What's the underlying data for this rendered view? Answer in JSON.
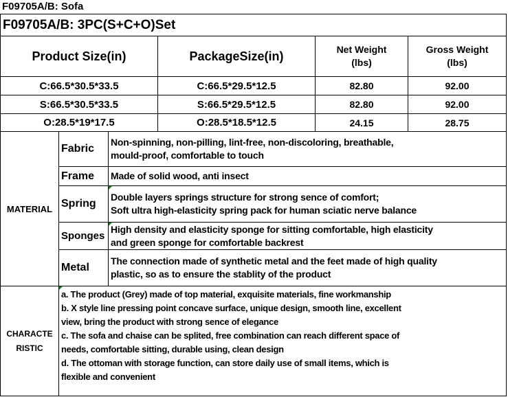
{
  "sheet_title": "F09705A/B: Sofa",
  "set_title": "F09705A/B: 3PC(S+C+O)Set",
  "headers": {
    "product_size": "Product Size(in)",
    "package_size": "PackageSize(in)",
    "net_weight": [
      "Net Weight",
      "(lbs)"
    ],
    "gross_weight": [
      "Gross Weight",
      "(lbs)"
    ]
  },
  "rows": [
    {
      "product": "C:66.5*30.5*33.5",
      "package": "C:66.5*29.5*12.5",
      "net": "82.80",
      "gross": "92.00"
    },
    {
      "product": "S:66.5*30.5*33.5",
      "package": "S:66.5*29.5*12.5",
      "net": "82.80",
      "gross": "92.00"
    },
    {
      "product": "O:28.5*19*17.5",
      "package": "O:28.5*18.5*12.5",
      "net": "24.15",
      "gross": "28.75"
    }
  ],
  "material": {
    "label": "MATERIAL",
    "items": [
      {
        "name": "Fabric",
        "lines": [
          "Non-spinning, non-pilling, lint-free, non-discoloring, breathable,",
          "mould-proof, comfortable to touch"
        ]
      },
      {
        "name": "Frame",
        "lines": [
          "Made of solid wood, anti insect"
        ]
      },
      {
        "name": "Spring",
        "lines": [
          "Double layers springs structure for strong sence of comfort;",
          "Soft ultra high-elasticity spring pack for human sciatic nerve balance"
        ]
      },
      {
        "name": "Sponges",
        "lines": [
          "High density and elasticity sponge for sitting comfortable, high elasticity",
          "and green sponge for comfortable backrest"
        ]
      },
      {
        "name": "Metal",
        "lines": [
          "The connection made of synthetic metal and the feet made of high quality",
          "plastic, so as to ensure the stablity of  the product"
        ]
      }
    ]
  },
  "characteristic": {
    "label": [
      "CHARACTE",
      "RISTIC"
    ],
    "lines": [
      "a. The product (Grey) made of top material, exquisite materials, fine workmanship",
      "b. X style line pressing point concave surface, unique design, smooth line, excellent",
      "view, bring the product with strong sence of elegance",
      "c. The sofa and chaise can be splited, free combination can reach different space of",
      "needs, comfortable sitting, durable using, clean design",
      "d. The ottoman with storage function, can store daily use of small items, which is",
      "flexible and convenient"
    ]
  },
  "colors": {
    "border": "#000000",
    "comment_marker": "#1a7a1a"
  }
}
